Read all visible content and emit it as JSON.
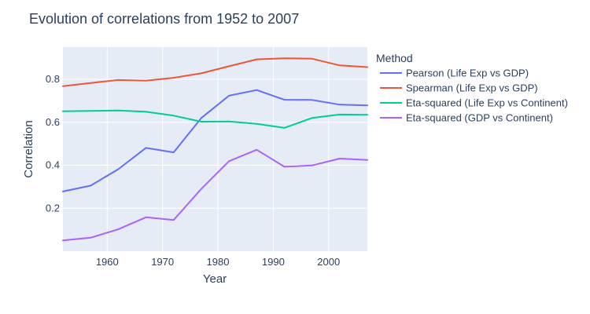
{
  "chart_data": {
    "type": "line",
    "title": "Evolution of correlations from 1952 to 2007",
    "xlabel": "Year",
    "ylabel": "Correlation",
    "xlim": [
      1952,
      2007
    ],
    "ylim": [
      0.0,
      0.95
    ],
    "x_ticks": [
      1960,
      1970,
      1980,
      1990,
      2000
    ],
    "y_ticks": [
      0.2,
      0.4,
      0.6,
      0.8
    ],
    "grid": true,
    "legend_title": "Method",
    "legend_position": "right",
    "x": [
      1952,
      1957,
      1962,
      1967,
      1972,
      1977,
      1982,
      1987,
      1992,
      1997,
      2002,
      2007
    ],
    "series": [
      {
        "name": "Pearson (Life Exp vs GDP)",
        "color": "#636efa",
        "values": [
          0.278,
          0.305,
          0.382,
          0.481,
          0.46,
          0.62,
          0.724,
          0.75,
          0.705,
          0.704,
          0.682,
          0.679
        ]
      },
      {
        "name": "Spearman (Life Exp vs GDP)",
        "color": "#ef553b",
        "values": [
          0.768,
          0.783,
          0.797,
          0.794,
          0.807,
          0.828,
          0.861,
          0.893,
          0.898,
          0.896,
          0.865,
          0.857
        ]
      },
      {
        "name": "Eta-squared (Life Exp vs Continent)",
        "color": "#00cc96",
        "values": [
          0.651,
          0.653,
          0.655,
          0.649,
          0.631,
          0.603,
          0.604,
          0.593,
          0.574,
          0.62,
          0.636,
          0.635
        ]
      },
      {
        "name": "Eta-squared (GDP vs Continent)",
        "color": "#ab63fa",
        "values": [
          0.05,
          0.063,
          0.102,
          0.158,
          0.145,
          0.29,
          0.419,
          0.472,
          0.393,
          0.399,
          0.431,
          0.425
        ]
      }
    ]
  }
}
